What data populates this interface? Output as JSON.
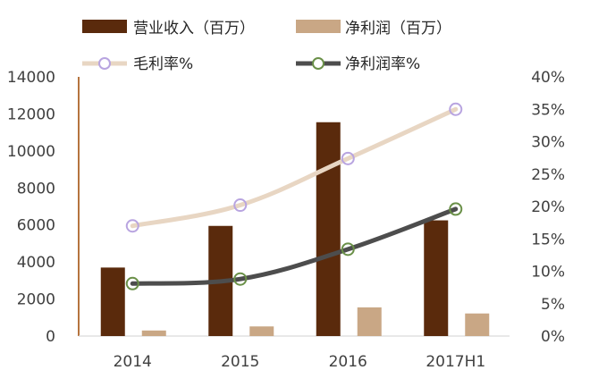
{
  "chart_data": {
    "type": "bar+line",
    "categories": [
      "2014",
      "2015",
      "2016",
      "2017H1"
    ],
    "bars": [
      {
        "name": "营业收入（百万）",
        "values": [
          3700,
          5950,
          11550,
          6250
        ],
        "color": "#5a2a0c"
      },
      {
        "name": "净利润（百万）",
        "values": [
          300,
          520,
          1550,
          1220
        ],
        "color": "#c9a785"
      }
    ],
    "lines": [
      {
        "name": "毛利率%",
        "values": [
          0.17,
          0.202,
          0.274,
          0.35
        ],
        "color": "#e8d6c3",
        "marker_color": "#b8a4e0",
        "smooth": true
      },
      {
        "name": "净利润率%",
        "values": [
          0.081,
          0.088,
          0.134,
          0.196
        ],
        "color": "#4d4d4d",
        "marker_color": "#6a9048",
        "smooth": true
      }
    ],
    "y_left": {
      "min": 0,
      "max": 14000,
      "ticks": [
        "0",
        "2000",
        "4000",
        "6000",
        "8000",
        "10000",
        "12000",
        "14000"
      ]
    },
    "y_right": {
      "min": 0,
      "max": 0.4,
      "ticks": [
        "0%",
        "5%",
        "10%",
        "15%",
        "20%",
        "25%",
        "30%",
        "35%",
        "40%"
      ]
    },
    "legend": "top",
    "grid": false
  }
}
